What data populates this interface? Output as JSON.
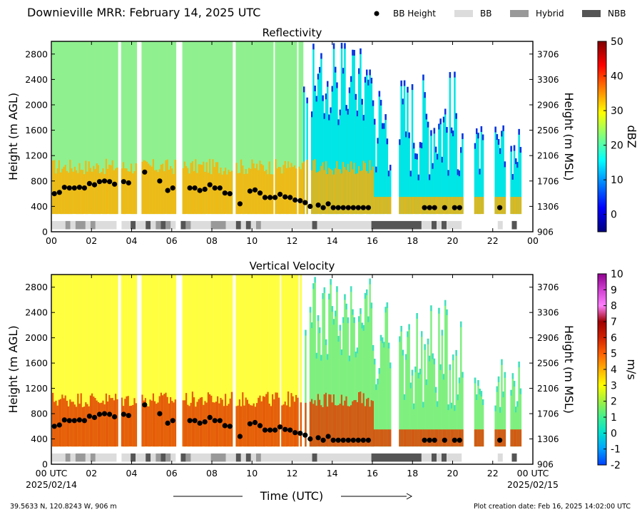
{
  "header": {
    "title": "Downieville MRR:  February 14, 2025 UTC",
    "legend": [
      {
        "label": "BB Height",
        "kind": "dot",
        "color": "#000000"
      },
      {
        "label": "BB",
        "kind": "box",
        "color": "#dcdcdc"
      },
      {
        "label": "Hybrid",
        "kind": "box",
        "color": "#999999"
      },
      {
        "label": "NBB",
        "kind": "box",
        "color": "#555555"
      }
    ]
  },
  "footer": {
    "location": "39.5633 N, 120.8243 W, 906 m",
    "creation": "Plot creation date: Feb 16, 2025 14:02:00 UTC",
    "time_axis_label": "Time (UTC)"
  },
  "chart_data": [
    {
      "type": "heatmap",
      "title": "Reflectivity",
      "xlabel": "",
      "ylabel": "Height (m AGL)",
      "y2label": "Height (m MSL)",
      "xticks": [
        "00",
        "02",
        "04",
        "06",
        "08",
        "10",
        "12",
        "14",
        "16",
        "18",
        "20",
        "22",
        "00"
      ],
      "xlim_hours": [
        0,
        24
      ],
      "ylim": [
        0,
        3000
      ],
      "yticks": [
        "0",
        "400",
        "800",
        "1200",
        "1600",
        "2000",
        "2400",
        "2800"
      ],
      "y2ticks": [
        "906",
        "1306",
        "1706",
        "2106",
        "2506",
        "2906",
        "3306",
        "3706"
      ],
      "colorbar": {
        "label": "dBZ",
        "range": [
          -5,
          50
        ],
        "ticks": [
          "0",
          "10",
          "20",
          "30",
          "40",
          "50"
        ],
        "colors": [
          "#00007f",
          "#0000ff",
          "#007fff",
          "#00ffff",
          "#7fff7f",
          "#ffff00",
          "#ff7f00",
          "#ff0000",
          "#7f0000"
        ]
      },
      "field_colors": {
        "low": "#00e5e5",
        "mid": "#8ff08f",
        "high": "#ffb000",
        "edge": "#1030e0"
      }
    },
    {
      "type": "heatmap",
      "title": "Vertical Velocity",
      "xlabel": "",
      "ylabel": "Height (m AGL)",
      "y2label": "Height (m MSL)",
      "xticks": [
        "00 UTC",
        "02",
        "04",
        "06",
        "08",
        "10",
        "12",
        "14",
        "16",
        "18",
        "20",
        "22",
        "00 UTC"
      ],
      "xtick_dates": {
        "start": "2025/02/14",
        "end": "2025/02/15"
      },
      "xlim_hours": [
        0,
        24
      ],
      "ylim": [
        0,
        3000
      ],
      "yticks": [
        "0",
        "400",
        "800",
        "1200",
        "1600",
        "2000",
        "2400",
        "2800"
      ],
      "y2ticks": [
        "906",
        "1306",
        "1706",
        "2106",
        "2506",
        "2906",
        "3306",
        "3706"
      ],
      "colorbar": {
        "label": "m/s",
        "range": [
          -2,
          10
        ],
        "ticks": [
          "-2",
          "-1",
          "0",
          "1",
          "2",
          "3",
          "4",
          "5",
          "6",
          "7",
          "8",
          "9",
          "10"
        ],
        "colors": [
          "#0040ff",
          "#00a0ff",
          "#00e0d0",
          "#40f090",
          "#a0f040",
          "#ffff00",
          "#ffb000",
          "#ff6000",
          "#d02000",
          "#a00000",
          "#ff80ff",
          "#d040d0",
          "#900090"
        ]
      },
      "field_colors": {
        "low": "#7ff07f",
        "mid": "#ffff40",
        "high": "#e04000",
        "edge": "#40e0c0"
      }
    }
  ],
  "bb_height": {
    "series_name": "BB Height",
    "points": [
      [
        0.15,
        600
      ],
      [
        0.4,
        620
      ],
      [
        0.65,
        700
      ],
      [
        0.9,
        690
      ],
      [
        1.15,
        690
      ],
      [
        1.4,
        700
      ],
      [
        1.65,
        690
      ],
      [
        1.9,
        760
      ],
      [
        2.15,
        740
      ],
      [
        2.4,
        790
      ],
      [
        2.65,
        800
      ],
      [
        2.9,
        790
      ],
      [
        3.15,
        750
      ],
      [
        3.6,
        790
      ],
      [
        3.85,
        770
      ],
      [
        4.65,
        940
      ],
      [
        5.4,
        800
      ],
      [
        5.8,
        650
      ],
      [
        6.05,
        690
      ],
      [
        6.9,
        690
      ],
      [
        7.15,
        690
      ],
      [
        7.4,
        650
      ],
      [
        7.65,
        670
      ],
      [
        7.9,
        740
      ],
      [
        8.15,
        690
      ],
      [
        8.4,
        690
      ],
      [
        8.65,
        610
      ],
      [
        8.9,
        600
      ],
      [
        9.4,
        440
      ],
      [
        9.9,
        640
      ],
      [
        10.15,
        660
      ],
      [
        10.4,
        610
      ],
      [
        10.65,
        540
      ],
      [
        10.9,
        540
      ],
      [
        11.15,
        540
      ],
      [
        11.4,
        590
      ],
      [
        11.65,
        550
      ],
      [
        11.9,
        540
      ],
      [
        12.15,
        500
      ],
      [
        12.4,
        490
      ],
      [
        12.65,
        460
      ],
      [
        12.9,
        400
      ],
      [
        13.3,
        420
      ],
      [
        13.55,
        380
      ],
      [
        13.8,
        440
      ],
      [
        14.05,
        380
      ],
      [
        14.3,
        380
      ],
      [
        14.55,
        380
      ],
      [
        14.8,
        380
      ],
      [
        15.05,
        380
      ],
      [
        15.3,
        380
      ],
      [
        15.55,
        380
      ],
      [
        15.8,
        380
      ],
      [
        18.6,
        380
      ],
      [
        18.85,
        380
      ],
      [
        19.1,
        380
      ],
      [
        19.6,
        380
      ],
      [
        20.1,
        380
      ],
      [
        20.35,
        380
      ],
      [
        22.35,
        380
      ]
    ]
  },
  "bb_type": {
    "segments": [
      [
        0.0,
        0.7,
        "BB"
      ],
      [
        0.7,
        0.95,
        "Hybrid"
      ],
      [
        0.95,
        1.2,
        "BB"
      ],
      [
        1.2,
        1.7,
        "Hybrid"
      ],
      [
        1.7,
        1.95,
        "BB"
      ],
      [
        1.95,
        2.2,
        "Hybrid"
      ],
      [
        2.2,
        3.25,
        "BB"
      ],
      [
        3.5,
        3.95,
        "BB"
      ],
      [
        3.95,
        4.2,
        "NBB"
      ],
      [
        4.2,
        4.7,
        "BB"
      ],
      [
        4.7,
        4.95,
        "NBB"
      ],
      [
        4.95,
        5.2,
        "BB"
      ],
      [
        5.2,
        5.45,
        "Hybrid"
      ],
      [
        5.45,
        5.7,
        "NBB"
      ],
      [
        5.7,
        5.95,
        "Hybrid"
      ],
      [
        5.95,
        6.2,
        "BB"
      ],
      [
        6.45,
        6.7,
        "NBB"
      ],
      [
        6.7,
        6.95,
        "Hybrid"
      ],
      [
        6.95,
        7.95,
        "BB"
      ],
      [
        7.95,
        8.7,
        "Hybrid"
      ],
      [
        8.7,
        9.2,
        "BB"
      ],
      [
        9.2,
        9.45,
        "NBB"
      ],
      [
        9.45,
        9.7,
        "BB"
      ],
      [
        9.7,
        9.95,
        "NBB"
      ],
      [
        9.95,
        10.2,
        "BB"
      ],
      [
        10.2,
        10.45,
        "Hybrid"
      ],
      [
        10.45,
        13.0,
        "BB"
      ],
      [
        13.0,
        13.25,
        "NBB"
      ],
      [
        13.25,
        15.95,
        "BB"
      ],
      [
        15.95,
        18.45,
        "NBB"
      ],
      [
        18.45,
        18.95,
        "BB"
      ],
      [
        18.95,
        19.2,
        "NBB"
      ],
      [
        19.2,
        19.45,
        "BB"
      ],
      [
        19.45,
        19.7,
        "NBB"
      ],
      [
        19.7,
        20.45,
        "BB"
      ],
      [
        22.25,
        22.5,
        "BB"
      ],
      [
        22.95,
        23.2,
        "NBB"
      ]
    ]
  },
  "echo_mask": {
    "gap_hours": [
      [
        3.25,
        3.45
      ],
      [
        4.2,
        4.45
      ],
      [
        6.2,
        6.45
      ],
      [
        9.0,
        9.15
      ],
      [
        16.9,
        17.3
      ],
      [
        20.5,
        21.0
      ],
      [
        21.5,
        22.05
      ],
      [
        22.6,
        22.85
      ]
    ]
  }
}
